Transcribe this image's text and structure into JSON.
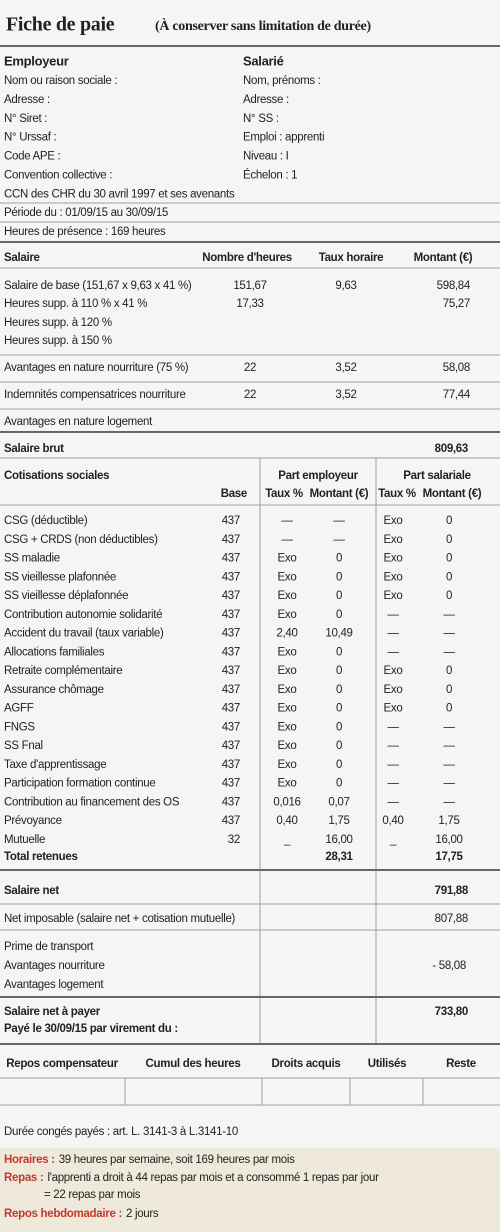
{
  "header": {
    "title": "Fiche de paie",
    "subtitle": "(À conserver sans limitation de durée)"
  },
  "employer": {
    "heading": "Employeur",
    "lines": [
      "Nom ou raison sociale :",
      "Adresse :",
      "N° Siret :",
      "N° Urssaf :",
      "Code APE :",
      "Convention collective :",
      "CCN des CHR du 30 avril 1997 et ses avenants"
    ]
  },
  "employee": {
    "heading": "Salarié",
    "lines": [
      "Nom, prénoms :",
      "Adresse :",
      "N° SS :",
      "Emploi : apprenti",
      "Niveau : I",
      "Échelon : 1"
    ]
  },
  "period": "Période du : 01/09/15 au 30/09/15",
  "hours": "Heures de présence : 169 heures",
  "salary": {
    "headers": [
      "Salaire",
      "Nombre d'heures",
      "Taux horaire",
      "Montant (€)"
    ],
    "rows": [
      {
        "label": "Salaire de base (151,67 x 9,63 x 41 %)",
        "hours": "151,67",
        "rate": "9,63",
        "amount": "598,84"
      },
      {
        "label": "Heures supp. à 110 % x 41 %",
        "hours": "17,33",
        "amount": "75,27"
      },
      {
        "label": "Heures supp. à 120 %"
      },
      {
        "label": "Heures supp. à 150 %"
      },
      {
        "label": "Avantages en nature nourriture (75 %)",
        "hours": "22",
        "rate": "3,52",
        "amount": "58,08"
      },
      {
        "label": "Indemnités compensatrices nourriture",
        "hours": "22",
        "rate": "3,52",
        "amount": "77,44"
      },
      {
        "label": "Avantages en nature logement"
      }
    ],
    "gross": {
      "label": "Salaire brut",
      "amount": "809,63"
    }
  },
  "contributions": {
    "title": "Cotisations sociales",
    "base": "Base",
    "employer": "Part employeur",
    "employer_cols": [
      "Taux %",
      "Montant (€)"
    ],
    "employee": "Part salariale",
    "employee_cols": [
      "Taux %",
      "Montant (€)"
    ],
    "rows": [
      [
        "CSG (déductible)",
        "437",
        "—",
        "—",
        "Exo",
        "0"
      ],
      [
        "CSG + CRDS (non déductibles)",
        "437",
        "—",
        "—",
        "Exo",
        "0"
      ],
      [
        "SS maladie",
        "437",
        "Exo",
        "0",
        "Exo",
        "0"
      ],
      [
        "SS vieillesse plafonnée",
        "437",
        "Exo",
        "0",
        "Exo",
        "0"
      ],
      [
        "SS vieillesse déplafonnée",
        "437",
        "Exo",
        "0",
        "Exo",
        "0"
      ],
      [
        "Contribution autonomie solidarité",
        "437",
        "Exo",
        "0",
        "—",
        "—"
      ],
      [
        "Accident du travail (taux variable)",
        "437",
        "2,40",
        "10,49",
        "—",
        "—"
      ],
      [
        "Allocations familiales",
        "437",
        "Exo",
        "0",
        "—",
        "—"
      ],
      [
        "Retraite complémentaire",
        "437",
        "Exo",
        "0",
        "Exo",
        "0"
      ],
      [
        "Assurance chômage",
        "437",
        "Exo",
        "0",
        "Exo",
        "0"
      ],
      [
        "AGFF",
        "437",
        "Exo",
        "0",
        "Exo",
        "0"
      ],
      [
        "FNGS",
        "437",
        "Exo",
        "0",
        "—",
        "—"
      ],
      [
        "SS Fnal",
        "437",
        "Exo",
        "0",
        "—",
        "—"
      ],
      [
        "Taxe d'apprentissage",
        "437",
        "Exo",
        "0",
        "—",
        "—"
      ],
      [
        "Participation formation continue",
        "437",
        "Exo",
        "0",
        "—",
        "—"
      ],
      [
        "Contribution au financement des OS",
        "437",
        "0,016",
        "0,07",
        "—",
        "—"
      ],
      [
        "Prévoyance",
        "437",
        "0,40",
        "1,75",
        "0,40",
        "1,75"
      ],
      [
        "Mutuelle",
        "32",
        "_",
        "16,00",
        "_",
        "16,00"
      ]
    ],
    "total": {
      "label": "Total retenues",
      "employer_amount": "28,31",
      "employee_amount": "17,75"
    }
  },
  "net": {
    "net_salary": {
      "label": "Salaire net",
      "amount": "791,88"
    },
    "taxable": {
      "label": "Net imposable (salaire net + cotisation mutuelle)",
      "amount": "807,88"
    },
    "transport": {
      "label": "Prime de transport"
    },
    "food": {
      "label": "Avantages nourriture",
      "amount": "- 58,08"
    },
    "housing": {
      "label": "Avantages logement"
    },
    "to_pay": {
      "label": "Salaire net à payer",
      "amount": "733,80"
    },
    "paid": "Payé le 30/09/15 par virement du :"
  },
  "rest_table": {
    "headers": [
      "Repos compensateur",
      "Cumul des heures",
      "Droits acquis",
      "Utilisés",
      "Reste"
    ]
  },
  "leave_note": "Durée congés payés : art. L. 3141-3  à  L.3141-10",
  "notes": [
    {
      "label": "Horaires :",
      "text": "39 heures par semaine, soit 169 heures par mois"
    },
    {
      "label": "Repas :",
      "text": "l'apprenti a droit à 44 repas par mois et a consommé 1 repas par jour",
      "continuation": "= 22 repas par mois"
    },
    {
      "label": "Repos hebdomadaire :",
      "text": "2 jours"
    }
  ]
}
